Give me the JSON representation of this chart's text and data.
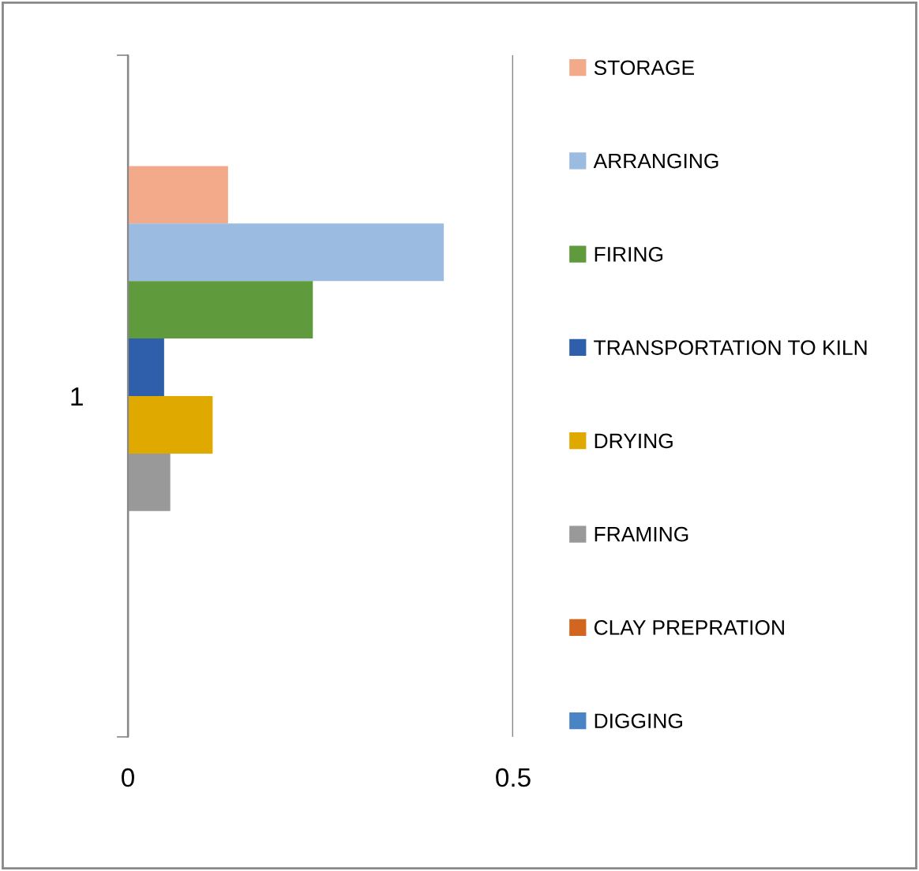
{
  "chart_data": {
    "type": "bar",
    "orientation": "horizontal",
    "categories": [
      "1"
    ],
    "series": [
      {
        "name": "STORAGE",
        "color": "#f2aa8a",
        "values": [
          0.13
        ]
      },
      {
        "name": "ARRANGING",
        "color": "#9bbbe1",
        "values": [
          0.41
        ]
      },
      {
        "name": "FIRING",
        "color": "#5f9a3d",
        "values": [
          0.24
        ]
      },
      {
        "name": "TRANSPORTATION TO KILN",
        "color": "#2f5fab",
        "values": [
          0.047
        ]
      },
      {
        "name": "DRYING",
        "color": "#e0a900",
        "values": [
          0.11
        ]
      },
      {
        "name": "FRAMING",
        "color": "#999999",
        "values": [
          0.055
        ]
      },
      {
        "name": "CLAY PREPRATION",
        "color": "#d2651f",
        "values": [
          0
        ]
      },
      {
        "name": "DIGGING",
        "color": "#4a84c4",
        "values": [
          0
        ]
      }
    ],
    "xlim": [
      0,
      0.5
    ],
    "xticks": [
      0,
      0.5
    ],
    "grid": "x",
    "legend": "right"
  }
}
